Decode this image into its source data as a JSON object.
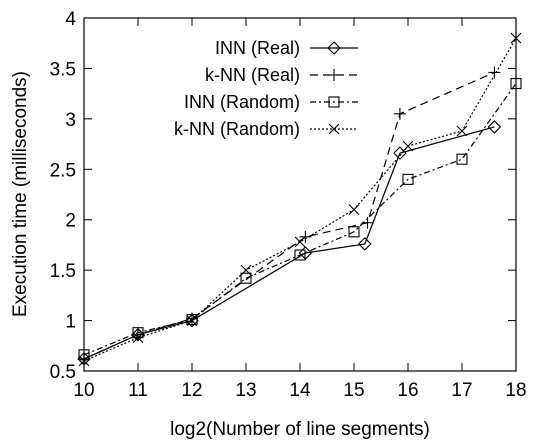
{
  "chart_data": {
    "type": "line",
    "title": "",
    "xlabel": "log2(Number of line segments)",
    "ylabel": "Execution time (milliseconds)",
    "xlim": [
      10,
      18
    ],
    "ylim": [
      0.5,
      4
    ],
    "xticks": [
      "10",
      "11",
      "12",
      "13",
      "14",
      "15",
      "16",
      "17",
      "18"
    ],
    "yticks": [
      "0.5",
      "1",
      "1.5",
      "2",
      "2.5",
      "3",
      "3.5",
      "4"
    ],
    "grid": false,
    "legend_position": "top-left",
    "series": [
      {
        "name": "INN (Real)",
        "marker": "diamond",
        "dash": "solid",
        "color": "#000000",
        "x": [
          10,
          11,
          12,
          14.1,
          15.2,
          15.85,
          17.6
        ],
        "y": [
          0.62,
          0.86,
          1.0,
          1.67,
          1.76,
          2.66,
          2.92
        ]
      },
      {
        "name": "k-NN (Real)",
        "marker": "plus",
        "dash": "dashed",
        "color": "#000000",
        "x": [
          10,
          11,
          12,
          14.1,
          15.25,
          15.85,
          17.6
        ],
        "y": [
          0.62,
          0.86,
          1.02,
          1.83,
          1.97,
          3.05,
          3.46
        ]
      },
      {
        "name": "INN (Random)",
        "marker": "square",
        "dash": "dash-dot",
        "color": "#000000",
        "x": [
          10,
          11,
          12,
          13,
          14,
          15,
          16,
          17,
          18
        ],
        "y": [
          0.66,
          0.88,
          1.01,
          1.42,
          1.65,
          1.88,
          2.4,
          2.6,
          3.35
        ]
      },
      {
        "name": "k-NN (Random)",
        "marker": "cross",
        "dash": "dotted",
        "color": "#000000",
        "x": [
          10,
          11,
          12,
          13,
          14,
          15,
          16,
          17,
          18
        ],
        "y": [
          0.6,
          0.83,
          1.0,
          1.5,
          1.78,
          2.1,
          2.73,
          2.88,
          3.8
        ]
      }
    ]
  }
}
